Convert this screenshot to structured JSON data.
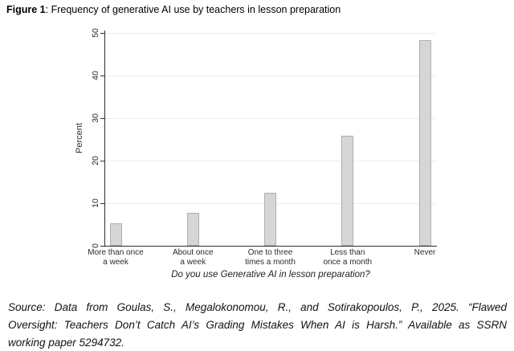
{
  "figure": {
    "caption_label": "Figure 1",
    "caption_text": ": Frequency of generative AI use by teachers in lesson preparation"
  },
  "chart_data": {
    "type": "bar",
    "title": "",
    "categories": [
      "More than once\na week",
      "About once\na week",
      "One to three\ntimes a month",
      "Less than\nonce a month",
      "Never"
    ],
    "values": [
      5.2,
      7.8,
      12.5,
      25.9,
      48.3
    ],
    "xlabel": "Do you use Generative AI in lesson preparation?",
    "ylabel": "Percent",
    "ylim": [
      0,
      50
    ],
    "yticks": [
      0,
      10,
      20,
      30,
      40,
      50
    ],
    "grid": true,
    "legend": "none",
    "bar_color": "#d6d6d6",
    "bar_border_color": "#aeaeae",
    "gridline_color": "#ececec",
    "axis_color": "#2e2e2e"
  },
  "source": {
    "lines": [
      "Source: Data from Goulas, S., Megalokonomou, R., and Sotirakopoulos, P., 2025. “Flawed",
      "Oversight: Teachers Don’t Catch AI’s Grading Mistakes When AI is Harsh.” Available as SSRN",
      "working paper 5294732."
    ]
  }
}
